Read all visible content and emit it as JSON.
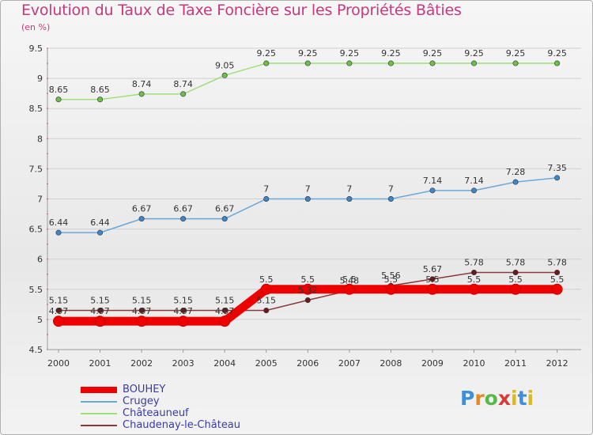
{
  "title": "Evolution du Taux de Taxe Foncière sur les Propriétés Bâties",
  "unit_label": "(en %)",
  "brand": "Proxiti",
  "chart_data": {
    "type": "line",
    "title": "Evolution du Taux de Taxe Foncière sur les Propriétés Bâties",
    "ylabel": "(en %)",
    "xlabel": "",
    "ylim": [
      4.5,
      9.5
    ],
    "yticks": [
      "4.5",
      "5",
      "5.5",
      "6",
      "6.5",
      "7",
      "7.5",
      "8",
      "8.5",
      "9",
      "9.5"
    ],
    "categories": [
      "2000",
      "2001",
      "2002",
      "2003",
      "2004",
      "2005",
      "2006",
      "2007",
      "2008",
      "2009",
      "2010",
      "2011",
      "2012"
    ],
    "legend_position": "bottom-left",
    "series": [
      {
        "name": "Châteauneuf",
        "color": "#9ce07a",
        "marker": "#6cc04a",
        "values": [
          8.65,
          8.65,
          8.74,
          8.74,
          9.05,
          9.25,
          9.25,
          9.25,
          9.25,
          9.25,
          9.25,
          9.25,
          9.25
        ],
        "labels": [
          "8.65",
          "8.65",
          "8.74",
          "8.74",
          "9.05",
          "9.25",
          "9.25",
          "9.25",
          "9.25",
          "9.25",
          "9.25",
          "9.25",
          "9.25"
        ]
      },
      {
        "name": "Crugey",
        "color": "#6aa8d8",
        "marker": "#3f86c8",
        "values": [
          6.44,
          6.44,
          6.67,
          6.67,
          6.67,
          7,
          7,
          7,
          7,
          7.14,
          7.14,
          7.28,
          7.35
        ],
        "labels": [
          "6.44",
          "6.44",
          "6.67",
          "6.67",
          "6.67",
          "7",
          "7",
          "7",
          "7",
          "7.14",
          "7.14",
          "7.28",
          "7.35"
        ]
      },
      {
        "name": "Chaudenay-le-Château",
        "color": "#8a3a3a",
        "marker": "#6a1a1a",
        "values": [
          5.15,
          5.15,
          5.15,
          5.15,
          5.15,
          5.15,
          5.32,
          5.48,
          5.56,
          5.67,
          5.78,
          5.78,
          5.78
        ],
        "labels": [
          "5.15",
          "5.15",
          "5.15",
          "5.15",
          "5.15",
          "5.15",
          "5.32",
          "5.48",
          "5.56",
          "5.67",
          "5.78",
          "5.78",
          "5.78"
        ]
      },
      {
        "name": "BOUHEY",
        "color": "#ee0000",
        "marker": "#ee0000",
        "values": [
          4.97,
          4.97,
          4.97,
          4.97,
          4.97,
          5.5,
          5.5,
          5.5,
          5.5,
          5.5,
          5.5,
          5.5,
          5.5
        ],
        "labels": [
          "4.97",
          "4.97",
          "4.97",
          "4.97",
          "4.97",
          "5.5",
          "5.5",
          "5.5",
          "5.5",
          "5.5",
          "5.5",
          "5.5",
          "5.5"
        ]
      }
    ],
    "legend": [
      {
        "name": "BOUHEY",
        "color": "#ee0000",
        "weight": "thick"
      },
      {
        "name": "Crugey",
        "color": "#6aa8d8",
        "weight": "thin"
      },
      {
        "name": "Châteauneuf",
        "color": "#9ce07a",
        "weight": "thin"
      },
      {
        "name": "Chaudenay-le-Château",
        "color": "#8a3a3a",
        "weight": "thin"
      }
    ]
  }
}
